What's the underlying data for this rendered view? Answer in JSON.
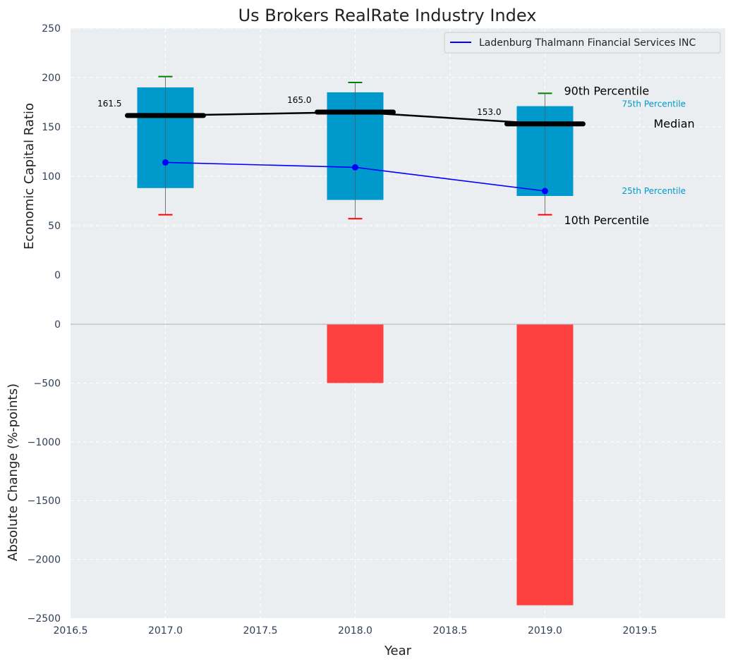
{
  "chart_data": [
    {
      "type": "box",
      "title": "Us Brokers RealRate Industry Index",
      "ylabel": "Economic Capital Ratio",
      "xlim": [
        2016.5,
        2019.95
      ],
      "ylim": [
        -50,
        250
      ],
      "yticks": [
        0,
        50,
        100,
        150,
        200,
        250
      ],
      "ytick_labels": [
        "0",
        "50",
        "100",
        "150",
        "200",
        "250"
      ],
      "categories": [
        2017,
        2018,
        2019
      ],
      "boxes": [
        {
          "x": 2017,
          "p10": 61,
          "p25": 88,
          "median": 161.5,
          "p75": 190,
          "p90": 201,
          "median_label": "161.5"
        },
        {
          "x": 2018,
          "p10": 57,
          "p25": 76,
          "median": 165.0,
          "p75": 185,
          "p90": 195,
          "median_label": "165.0"
        },
        {
          "x": 2019,
          "p10": 61,
          "p25": 80,
          "median": 153.0,
          "p75": 171,
          "p90": 184,
          "median_label": "153.0"
        }
      ],
      "series": [
        {
          "name": "Ladenburg Thalmann Financial Services INC",
          "color": "#0000ff",
          "x": [
            2017,
            2018,
            2019
          ],
          "values": [
            114,
            109,
            85
          ]
        }
      ],
      "legend": {
        "placement": "top-right",
        "entries": [
          "Ladenburg Thalmann Financial Services INC"
        ]
      },
      "annotations": {
        "p90": "90th Percentile",
        "p75": "75th Percentile",
        "median": "Median",
        "p25": "25th Percentile",
        "p10": "10th Percentile"
      },
      "colors": {
        "box": "#0099cc",
        "median": "#000000",
        "p90_cap": "#008000",
        "p10_cap": "#ff0000",
        "annotation_small": "#0099cc"
      }
    },
    {
      "type": "bar",
      "ylabel": "Absolute Change (%-points)",
      "xlabel": "Year",
      "xlim": [
        2016.5,
        2019.95
      ],
      "ylim": [
        -2500,
        0
      ],
      "yticks": [
        0,
        -500,
        -1000,
        -1500,
        -2000,
        -2500
      ],
      "ytick_labels": [
        "0",
        "−500",
        "−1000",
        "−1500",
        "−2000",
        "−2500"
      ],
      "xticks": [
        2016.5,
        2017.0,
        2017.5,
        2018.0,
        2018.5,
        2019.0,
        2019.5
      ],
      "xtick_labels": [
        "2016.5",
        "2017.0",
        "2017.5",
        "2018.0",
        "2018.5",
        "2019.0",
        "2019.5"
      ],
      "categories": [
        2017,
        2018,
        2019
      ],
      "values": [
        0,
        -500,
        -2390
      ],
      "bar_color": "#ff4040"
    }
  ]
}
